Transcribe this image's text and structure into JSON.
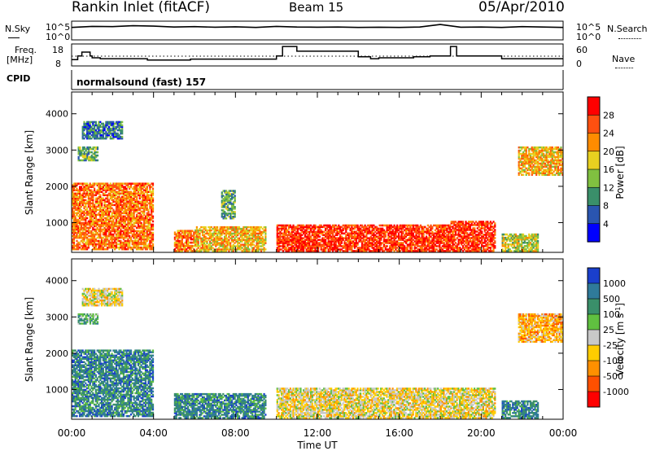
{
  "header": {
    "title": "Rankin Inlet (fitACF)",
    "beam": "Beam 15",
    "date": "05/Apr/2010"
  },
  "top_labels": {
    "nsky": "N.Sky",
    "nsky_hi": "10^5",
    "nsky_lo": "10^0",
    "nsearch": "N.Search",
    "nsearch_hi": "10^5",
    "nsearch_lo": "10^0",
    "freq": "Freq.",
    "freq_unit": "[MHz]",
    "freq_hi": "18",
    "freq_lo": "8",
    "nave": "Nave",
    "nave_hi": "60",
    "nave_lo": "0",
    "cpid": "CPID",
    "mode": "normalsound (fast) 157"
  },
  "chart_data": [
    {
      "type": "line",
      "panel": "counts",
      "xlabel": "",
      "ylabel": "N.Sky / N.Search",
      "y_scale": "log",
      "ylim": [
        1,
        100000
      ],
      "x_hours": [
        0,
        1,
        2,
        3,
        4,
        5,
        6,
        7,
        8,
        9,
        10,
        11,
        12,
        13,
        14,
        15,
        16,
        17,
        18,
        19,
        20,
        21,
        22,
        23,
        24
      ],
      "series": [
        {
          "name": "N.Sky",
          "values": [
            3000,
            6000,
            5000,
            9000,
            7000,
            4000,
            5000,
            3500,
            4500,
            3000,
            6000,
            4000,
            3500,
            4000,
            3000,
            3500,
            3000,
            4000,
            20000,
            3500,
            4000,
            3000,
            5000,
            4000,
            3000
          ]
        }
      ]
    },
    {
      "type": "line",
      "panel": "frequency",
      "ylabel": "Freq. [MHz]",
      "ylim": [
        8,
        18
      ],
      "x_hours": [
        0,
        0.3,
        0.5,
        0.9,
        1.0,
        1.4,
        3.7,
        5.8,
        10.0,
        10.3,
        11.0,
        14.0,
        14.6,
        15.0,
        16.7,
        17.5,
        18.5,
        18.8,
        21.0,
        24.0
      ],
      "series": [
        {
          "name": "Freq.",
          "values": [
            10.5,
            12.5,
            14.5,
            12.5,
            11.5,
            11.0,
            10.3,
            10.8,
            12.5,
            17.5,
            15.0,
            12.0,
            11.0,
            11.5,
            12.0,
            12.5,
            17.5,
            12.5,
            11.0,
            11.0
          ]
        },
        {
          "name": "Nave",
          "values": [
            30,
            30,
            30,
            30,
            30,
            30,
            30,
            30,
            30,
            30,
            30,
            30,
            30,
            30,
            30,
            30,
            30,
            30,
            30,
            30
          ]
        }
      ]
    },
    {
      "type": "heatmap",
      "panel": "power",
      "ylabel": "Slant Range [km]",
      "yticks": [
        "1000",
        "2000",
        "3000",
        "4000"
      ],
      "ylim": [
        180,
        4600
      ],
      "colorbar": {
        "label": "Power [dB]",
        "ticks": [
          "4",
          "8",
          "12",
          "16",
          "20",
          "24",
          "28"
        ],
        "colors": [
          "#0000ff",
          "#2a55b0",
          "#3a8f6a",
          "#80c040",
          "#e8d020",
          "#ff8c00",
          "#ff5010",
          "#ff0000"
        ]
      },
      "regions": [
        {
          "h0": 0.0,
          "h1": 4.0,
          "r0": 250,
          "r1": 2100,
          "level": 24
        },
        {
          "h0": 0.3,
          "h1": 1.3,
          "r0": 2700,
          "r1": 3100,
          "level": 12
        },
        {
          "h0": 0.5,
          "h1": 2.5,
          "r0": 3300,
          "r1": 3800,
          "level": 8
        },
        {
          "h0": 5.0,
          "h1": 6.0,
          "r0": 200,
          "r1": 800,
          "level": 24
        },
        {
          "h0": 6.0,
          "h1": 9.5,
          "r0": 200,
          "r1": 900,
          "level": 20
        },
        {
          "h0": 7.3,
          "h1": 8.0,
          "r0": 1100,
          "r1": 1900,
          "level": 12
        },
        {
          "h0": 10.0,
          "h1": 18.5,
          "r0": 200,
          "r1": 950,
          "level": 28
        },
        {
          "h0": 18.5,
          "h1": 20.7,
          "r0": 200,
          "r1": 1050,
          "level": 28
        },
        {
          "h0": 21.0,
          "h1": 22.8,
          "r0": 200,
          "r1": 700,
          "level": 16
        },
        {
          "h0": 21.8,
          "h1": 24.0,
          "r0": 2300,
          "r1": 3100,
          "level": 20
        }
      ]
    },
    {
      "type": "heatmap",
      "panel": "velocity",
      "xlabel": "Time UT",
      "ylabel": "Slant Range [km]",
      "xticks": [
        "00:00",
        "04:00",
        "08:00",
        "12:00",
        "16:00",
        "20:00",
        "00:00"
      ],
      "yticks": [
        "1000",
        "2000",
        "3000",
        "4000"
      ],
      "ylim": [
        180,
        4600
      ],
      "colorbar": {
        "label": "Velocity [m s^-1]",
        "ticks": [
          "1000",
          "500",
          "100",
          "25",
          "-25",
          "-100",
          "-500",
          "-1000"
        ],
        "colors": [
          "#1a3fcc",
          "#2f7a9a",
          "#3a8f6a",
          "#60c040",
          "#c8c8c8",
          "#ffcc00",
          "#ff9000",
          "#ff5000",
          "#ff0000"
        ]
      },
      "regions": [
        {
          "h0": 0.0,
          "h1": 4.0,
          "r0": 250,
          "r1": 2100,
          "level": 100
        },
        {
          "h0": 0.3,
          "h1": 1.3,
          "r0": 2800,
          "r1": 3100,
          "level": 25
        },
        {
          "h0": 0.5,
          "h1": 2.5,
          "r0": 3300,
          "r1": 3800,
          "level": -100
        },
        {
          "h0": 5.0,
          "h1": 9.5,
          "r0": 200,
          "r1": 900,
          "level": 100
        },
        {
          "h0": 10.0,
          "h1": 20.7,
          "r0": 200,
          "r1": 1050,
          "level": -100
        },
        {
          "h0": 21.0,
          "h1": 22.8,
          "r0": 200,
          "r1": 700,
          "level": 100
        },
        {
          "h0": 21.8,
          "h1": 24.0,
          "r0": 2300,
          "r1": 3100,
          "level": -500
        }
      ]
    }
  ]
}
